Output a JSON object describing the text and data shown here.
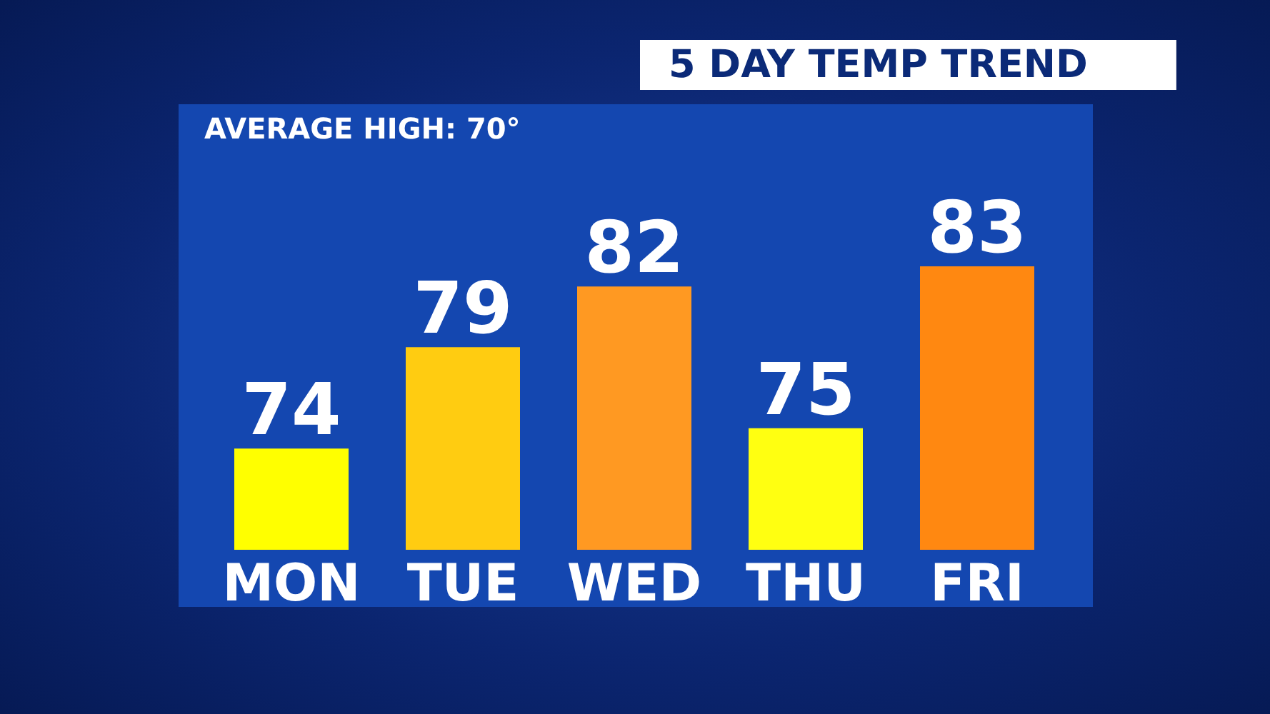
{
  "chart_data": {
    "type": "bar",
    "title": "5 DAY TEMP TREND",
    "annotations": [
      "AVERAGE HIGH: 70°"
    ],
    "categories": [
      "MON",
      "TUE",
      "WED",
      "THU",
      "FRI"
    ],
    "values": [
      74,
      79,
      82,
      75,
      83
    ],
    "colors": [
      "#ffff00",
      "#ffcc11",
      "#ff9922",
      "#ffff11",
      "#ff8811"
    ],
    "ylim": [
      69,
      91
    ],
    "data_labels": true,
    "tick_labels": "x"
  }
}
